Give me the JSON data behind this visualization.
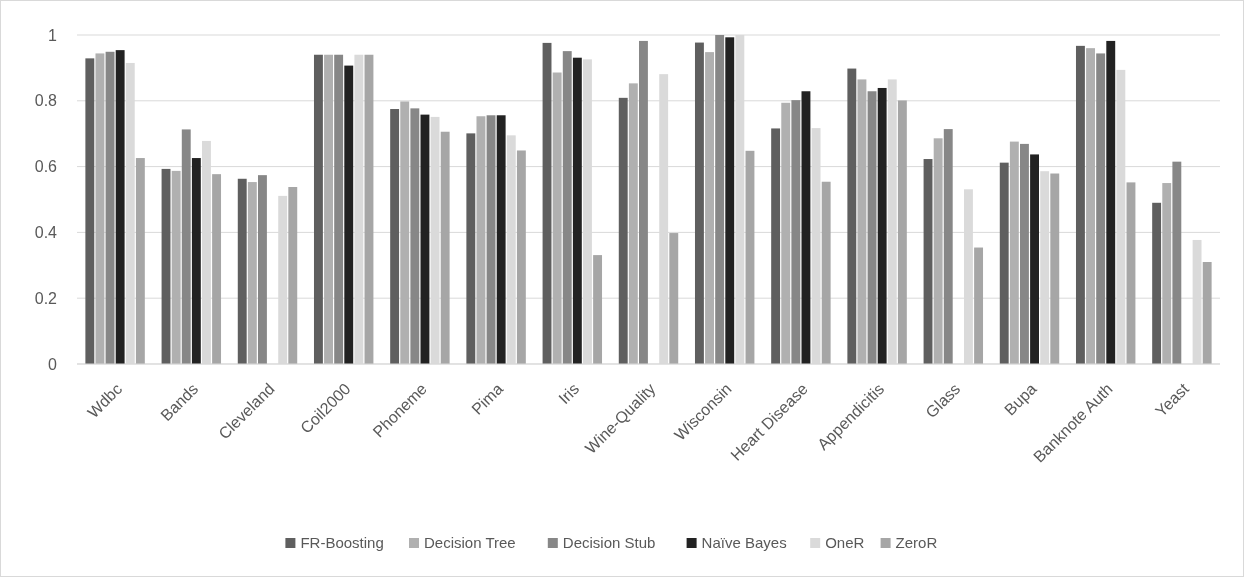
{
  "chart_data": {
    "type": "bar",
    "categories": [
      "Wdbc",
      "Bands",
      "Cleveland",
      "Coil2000",
      "Phoneme",
      "Pima",
      "Iris",
      "Wine-Quality",
      "Wisconsin",
      "Heart Disease",
      "Appendicitis",
      "Glass",
      "Bupa",
      "Banknote Auth",
      "Yeast"
    ],
    "series": [
      {
        "name": "FR-Boosting",
        "color": "#5f5f5f",
        "values": [
          0.929,
          0.593,
          0.563,
          0.94,
          0.775,
          0.701,
          0.976,
          0.809,
          0.977,
          0.716,
          0.898,
          0.623,
          0.612,
          0.967,
          0.49
        ]
      },
      {
        "name": "Decision Tree",
        "color": "#b0b0b0",
        "values": [
          0.944,
          0.587,
          0.553,
          0.94,
          0.798,
          0.753,
          0.886,
          0.853,
          0.948,
          0.794,
          0.865,
          0.686,
          0.676,
          0.96,
          0.55
        ]
      },
      {
        "name": "Decision Stub",
        "color": "#878787",
        "values": [
          0.949,
          0.713,
          0.574,
          0.94,
          0.777,
          0.756,
          0.951,
          0.982,
          1.0,
          0.802,
          0.829,
          0.714,
          0.669,
          0.944,
          0.615
        ]
      },
      {
        "name": "Naïve Bayes",
        "color": "#222222",
        "values": [
          0.954,
          0.626,
          null,
          0.907,
          0.758,
          0.756,
          0.931,
          null,
          0.993,
          0.829,
          0.839,
          null,
          0.637,
          0.982,
          null
        ]
      },
      {
        "name": "OneR",
        "color": "#dadada",
        "values": [
          0.915,
          0.678,
          0.511,
          0.94,
          0.751,
          0.695,
          0.926,
          0.881,
          1.0,
          0.717,
          0.865,
          0.531,
          0.586,
          0.894,
          0.377
        ]
      },
      {
        "name": "ZeroR",
        "color": "#a6a6a6",
        "values": [
          0.626,
          0.577,
          0.538,
          0.94,
          0.706,
          0.649,
          0.331,
          0.398,
          0.648,
          0.554,
          0.801,
          0.354,
          0.579,
          0.552,
          0.31
        ]
      }
    ],
    "ylim": [
      0,
      1
    ],
    "yticks": [
      0,
      0.2,
      0.4,
      0.6,
      0.8,
      1
    ],
    "grid": "y",
    "legend": "bottom"
  }
}
